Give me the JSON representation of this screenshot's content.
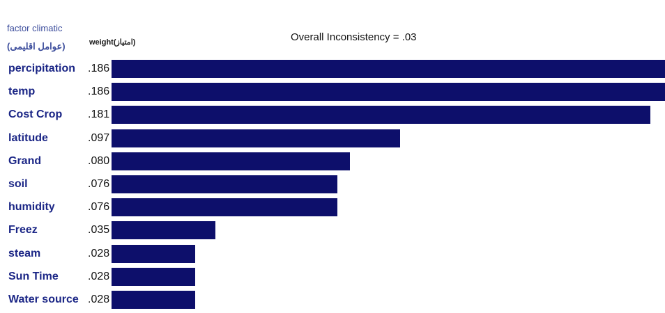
{
  "header": {
    "factor_line1": "factor climatic",
    "factor_line2": "(عوامل اقلیمی)",
    "weight_header": "weight(امتیاز)",
    "title": "Overall Inconsistency = .03"
  },
  "colors": {
    "bar": "#0d0f6b",
    "factor_label": "#1b2686",
    "header_label": "#3a4b9b"
  },
  "chart_data": {
    "type": "bar",
    "orientation": "horizontal",
    "title": "Overall Inconsistency = .03",
    "xlabel": "",
    "ylabel": "",
    "categories": [
      "percipitation",
      "temp",
      "Cost Crop",
      "latitude",
      "Grand",
      "soil",
      "humidity",
      "Freez",
      "steam",
      "Sun Time",
      "Water source"
    ],
    "value_labels": [
      ".186",
      ".186",
      ".181",
      ".097",
      ".080",
      ".076",
      ".076",
      ".035",
      ".028",
      ".028",
      ".028"
    ],
    "values": [
      0.186,
      0.186,
      0.181,
      0.097,
      0.08,
      0.076,
      0.076,
      0.035,
      0.028,
      0.028,
      0.028
    ],
    "xlim": [
      0,
      0.186
    ],
    "grid": false,
    "legend": "none"
  }
}
